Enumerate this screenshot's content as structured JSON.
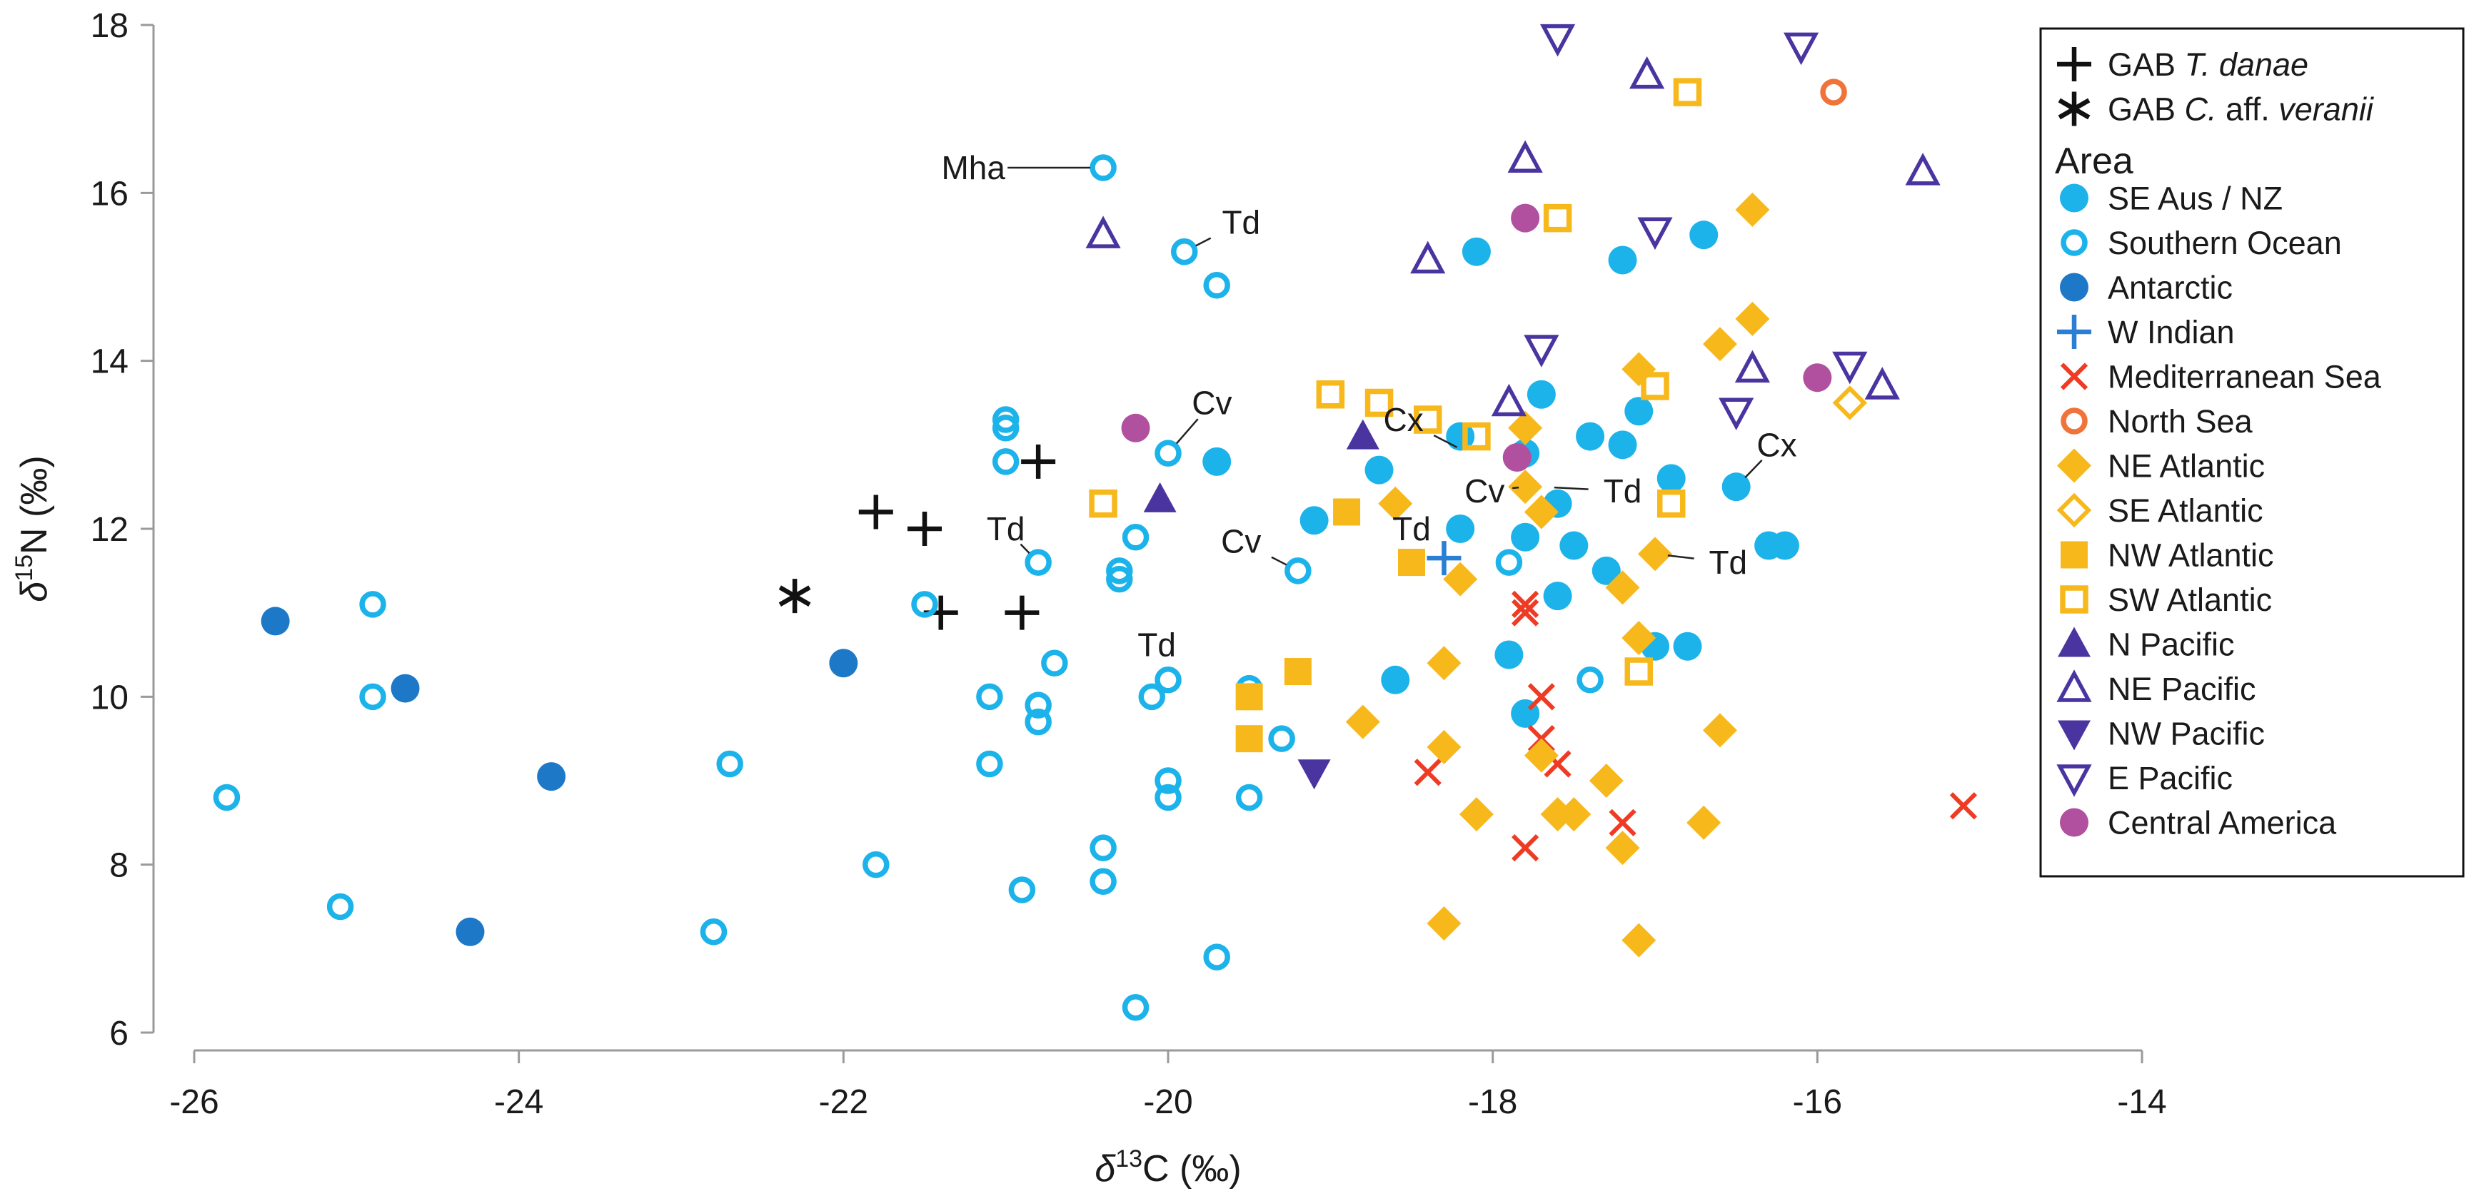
{
  "chart_data": {
    "type": "scatter",
    "xlabel": {
      "prefix": "δ",
      "sup": "13",
      "main": "C (‰)"
    },
    "ylabel": {
      "prefix": "δ",
      "sup": "15",
      "main": "N (‰)"
    },
    "xlim": [
      -26,
      -14
    ],
    "ylim": [
      6,
      18
    ],
    "xticks": [
      -26,
      -24,
      -22,
      -20,
      -18,
      -16,
      -14
    ],
    "yticks": [
      6,
      8,
      10,
      12,
      14,
      16,
      18
    ],
    "grid": false,
    "legend_position": "top-right",
    "legend_title": "Area",
    "gab_series": [
      {
        "name": "GAB T. danae",
        "label_parts": [
          "GAB ",
          "T. danae"
        ],
        "marker": "plus",
        "color": "#111111",
        "points": [
          [
            -21.8,
            12.2
          ],
          [
            -21.5,
            12.0
          ],
          [
            -21.4,
            11.0
          ],
          [
            -20.9,
            11.0
          ],
          [
            -20.8,
            12.8
          ]
        ]
      },
      {
        "name": "GAB C. aff. veranii",
        "label_parts": [
          "GAB ",
          "C.",
          " aff. ",
          "veranii"
        ],
        "marker": "asterisk",
        "color": "#111111",
        "points": [
          [
            -22.3,
            11.2
          ]
        ]
      }
    ],
    "series": [
      {
        "name": "SE Aus / NZ",
        "marker": "circle",
        "color": "#1cb3ea",
        "points": [
          [
            -19.7,
            12.8
          ],
          [
            -19.1,
            12.1
          ],
          [
            -18.7,
            12.7
          ],
          [
            -18.2,
            13.1
          ],
          [
            -18.6,
            10.2
          ],
          [
            -18.1,
            15.3
          ],
          [
            -17.8,
            12.9
          ],
          [
            -17.7,
            13.6
          ],
          [
            -17.8,
            11.9
          ],
          [
            -17.6,
            12.3
          ],
          [
            -17.5,
            11.8
          ],
          [
            -17.6,
            11.2
          ],
          [
            -17.4,
            13.1
          ],
          [
            -17.3,
            11.5
          ],
          [
            -17.2,
            13.0
          ],
          [
            -17.2,
            15.2
          ],
          [
            -17.1,
            13.4
          ],
          [
            -16.9,
            12.6
          ],
          [
            -16.7,
            15.5
          ],
          [
            -16.5,
            12.5
          ],
          [
            -16.3,
            11.8
          ],
          [
            -16.2,
            11.8
          ],
          [
            -17.0,
            10.6
          ],
          [
            -16.8,
            10.6
          ],
          [
            -17.9,
            10.5
          ],
          [
            -17.8,
            9.8
          ],
          [
            -18.2,
            12.0
          ]
        ]
      },
      {
        "name": "Southern Ocean",
        "marker": "circle-open",
        "color": "#1cb3ea",
        "points": [
          [
            -25.8,
            8.8
          ],
          [
            -25.1,
            7.5
          ],
          [
            -24.9,
            10.0
          ],
          [
            -24.9,
            11.1
          ],
          [
            -22.8,
            7.2
          ],
          [
            -22.7,
            9.2
          ],
          [
            -21.8,
            8.0
          ],
          [
            -21.5,
            11.1
          ],
          [
            -21.1,
            9.2
          ],
          [
            -21.1,
            10.0
          ],
          [
            -21.0,
            13.3
          ],
          [
            -21.0,
            13.2
          ],
          [
            -21.0,
            12.8
          ],
          [
            -20.9,
            7.7
          ],
          [
            -20.8,
            9.7
          ],
          [
            -20.8,
            9.9
          ],
          [
            -20.8,
            11.6
          ],
          [
            -20.7,
            10.4
          ],
          [
            -20.4,
            16.3
          ],
          [
            -20.4,
            8.2
          ],
          [
            -20.4,
            7.8
          ],
          [
            -20.3,
            11.4
          ],
          [
            -20.3,
            11.5
          ],
          [
            -20.2,
            11.9
          ],
          [
            -20.2,
            6.3
          ],
          [
            -20.1,
            10.0
          ],
          [
            -20.0,
            10.2
          ],
          [
            -20.0,
            9.0
          ],
          [
            -20.0,
            8.8
          ],
          [
            -20.0,
            12.9
          ],
          [
            -19.9,
            15.3
          ],
          [
            -19.7,
            14.9
          ],
          [
            -19.7,
            6.9
          ],
          [
            -19.5,
            8.8
          ],
          [
            -19.5,
            10.1
          ],
          [
            -19.3,
            9.5
          ],
          [
            -19.2,
            11.5
          ],
          [
            -17.9,
            11.6
          ],
          [
            -17.4,
            10.2
          ]
        ]
      },
      {
        "name": "Antarctic",
        "marker": "circle",
        "color": "#1e78c8",
        "points": [
          [
            -25.5,
            10.9
          ],
          [
            -24.7,
            10.1
          ],
          [
            -24.3,
            7.2
          ],
          [
            -23.8,
            9.05
          ],
          [
            -22.0,
            10.4
          ]
        ]
      },
      {
        "name": "W Indian",
        "marker": "plus",
        "color": "#2a7fd4",
        "points": [
          [
            -18.3,
            11.65
          ]
        ]
      },
      {
        "name": "Mediterranean Sea",
        "marker": "x",
        "color": "#ef3b24",
        "points": [
          [
            -18.4,
            9.1
          ],
          [
            -17.8,
            11.0
          ],
          [
            -17.8,
            11.1
          ],
          [
            -17.7,
            10.0
          ],
          [
            -17.7,
            9.5
          ],
          [
            -17.6,
            9.2
          ],
          [
            -17.8,
            8.2
          ],
          [
            -17.2,
            8.5
          ],
          [
            -15.1,
            8.7
          ]
        ]
      },
      {
        "name": "North Sea",
        "marker": "circle-open",
        "color": "#f0743a",
        "points": [
          [
            -15.9,
            17.2
          ]
        ]
      },
      {
        "name": "NE Atlantic",
        "marker": "diamond",
        "color": "#f7b81c",
        "points": [
          [
            -18.8,
            9.7
          ],
          [
            -18.6,
            12.3
          ],
          [
            -18.3,
            7.3
          ],
          [
            -18.3,
            9.4
          ],
          [
            -18.3,
            10.4
          ],
          [
            -18.2,
            11.4
          ],
          [
            -18.1,
            8.6
          ],
          [
            -17.8,
            13.2
          ],
          [
            -17.8,
            12.5
          ],
          [
            -17.7,
            12.2
          ],
          [
            -17.7,
            9.3
          ],
          [
            -17.6,
            8.6
          ],
          [
            -17.5,
            8.6
          ],
          [
            -17.3,
            9.0
          ],
          [
            -17.2,
            8.2
          ],
          [
            -17.2,
            11.3
          ],
          [
            -17.1,
            10.7
          ],
          [
            -17.1,
            7.1
          ],
          [
            -17.1,
            13.9
          ],
          [
            -17.0,
            11.7
          ],
          [
            -16.7,
            8.5
          ],
          [
            -16.6,
            9.6
          ],
          [
            -16.6,
            14.2
          ],
          [
            -16.4,
            14.5
          ],
          [
            -16.4,
            15.8
          ]
        ]
      },
      {
        "name": "SE Atlantic",
        "marker": "diamond-open",
        "color": "#f7b81c",
        "points": [
          [
            -15.8,
            13.5
          ]
        ]
      },
      {
        "name": "NW Atlantic",
        "marker": "square",
        "color": "#f7b81c",
        "points": [
          [
            -19.5,
            10.0
          ],
          [
            -19.5,
            9.5
          ],
          [
            -19.2,
            10.3
          ],
          [
            -18.9,
            12.2
          ],
          [
            -18.5,
            11.6
          ]
        ]
      },
      {
        "name": "SW Atlantic",
        "marker": "square-open",
        "color": "#f7b81c",
        "points": [
          [
            -20.4,
            12.3
          ],
          [
            -19.0,
            13.6
          ],
          [
            -18.7,
            13.5
          ],
          [
            -18.4,
            13.3
          ],
          [
            -18.1,
            13.1
          ],
          [
            -17.6,
            15.7
          ],
          [
            -17.0,
            13.7
          ],
          [
            -16.9,
            12.3
          ],
          [
            -17.1,
            10.3
          ],
          [
            -16.8,
            17.2
          ]
        ]
      },
      {
        "name": "N Pacific",
        "marker": "triangle",
        "color": "#4a35a0",
        "points": [
          [
            -20.05,
            12.35
          ],
          [
            -18.8,
            13.1
          ]
        ]
      },
      {
        "name": "NE Pacific",
        "marker": "triangle-open",
        "color": "#4a35a0",
        "points": [
          [
            -20.4,
            15.5
          ],
          [
            -18.4,
            15.2
          ],
          [
            -17.9,
            13.5
          ],
          [
            -17.8,
            16.4
          ],
          [
            -17.05,
            17.4
          ],
          [
            -16.4,
            13.9
          ],
          [
            -15.6,
            13.7
          ],
          [
            -15.35,
            16.25
          ]
        ]
      },
      {
        "name": "NW Pacific",
        "marker": "triangle-down",
        "color": "#4a35a0",
        "points": [
          [
            -19.1,
            9.1
          ]
        ]
      },
      {
        "name": "E Pacific",
        "marker": "triangle-down-open",
        "color": "#4a35a0",
        "points": [
          [
            -17.7,
            14.15
          ],
          [
            -17.6,
            17.85
          ],
          [
            -17.0,
            15.55
          ],
          [
            -16.5,
            13.4
          ],
          [
            -16.1,
            17.75
          ],
          [
            -15.8,
            13.95
          ]
        ]
      },
      {
        "name": "Central America",
        "marker": "circle",
        "color": "#b0509e",
        "points": [
          [
            -20.2,
            13.2
          ],
          [
            -17.8,
            15.7
          ],
          [
            -17.85,
            12.85
          ],
          [
            -16.0,
            13.8
          ]
        ]
      }
    ],
    "annotations": [
      {
        "text": "Mha",
        "text_at": [
          -21.2,
          16.3
        ],
        "point": [
          -20.4,
          16.3
        ],
        "anchor": "middle"
      },
      {
        "text": "Td",
        "text_at": [
          -19.55,
          15.65
        ],
        "point": [
          -19.9,
          15.3
        ],
        "anchor": "middle"
      },
      {
        "text": "Cv",
        "text_at": [
          -19.73,
          13.5
        ],
        "point": [
          -20.0,
          12.9
        ],
        "anchor": "middle"
      },
      {
        "text": "Td",
        "text_at": [
          -21.0,
          12.0
        ],
        "point": [
          -20.8,
          11.6
        ],
        "anchor": "middle"
      },
      {
        "text": "Td",
        "text_at": [
          -20.07,
          10.62
        ],
        "point": [
          -20.0,
          10.2
        ],
        "anchor": "middle"
      },
      {
        "text": "Cv",
        "text_at": [
          -19.55,
          11.85
        ],
        "point": [
          -19.2,
          11.5
        ],
        "anchor": "middle"
      },
      {
        "text": "Cx",
        "text_at": [
          -18.55,
          13.3
        ],
        "point": [
          -18.15,
          12.9
        ],
        "anchor": "middle"
      },
      {
        "text": "Cv",
        "text_at": [
          -18.05,
          12.45
        ],
        "point": [
          -17.8,
          12.5
        ],
        "anchor": "middle"
      },
      {
        "text": "Td",
        "text_at": [
          -17.2,
          12.45
        ],
        "point": [
          -17.7,
          12.5
        ],
        "anchor": "middle"
      },
      {
        "text": "Td",
        "text_at": [
          -18.5,
          12.0
        ],
        "point": [
          -18.2,
          12.0
        ],
        "anchor": "middle"
      },
      {
        "text": "Td",
        "text_at": [
          -16.55,
          11.6
        ],
        "point": [
          -17.0,
          11.7
        ],
        "anchor": "middle"
      },
      {
        "text": "Cx",
        "text_at": [
          -16.25,
          13.0
        ],
        "point": [
          -16.5,
          12.5
        ],
        "anchor": "middle"
      }
    ]
  }
}
